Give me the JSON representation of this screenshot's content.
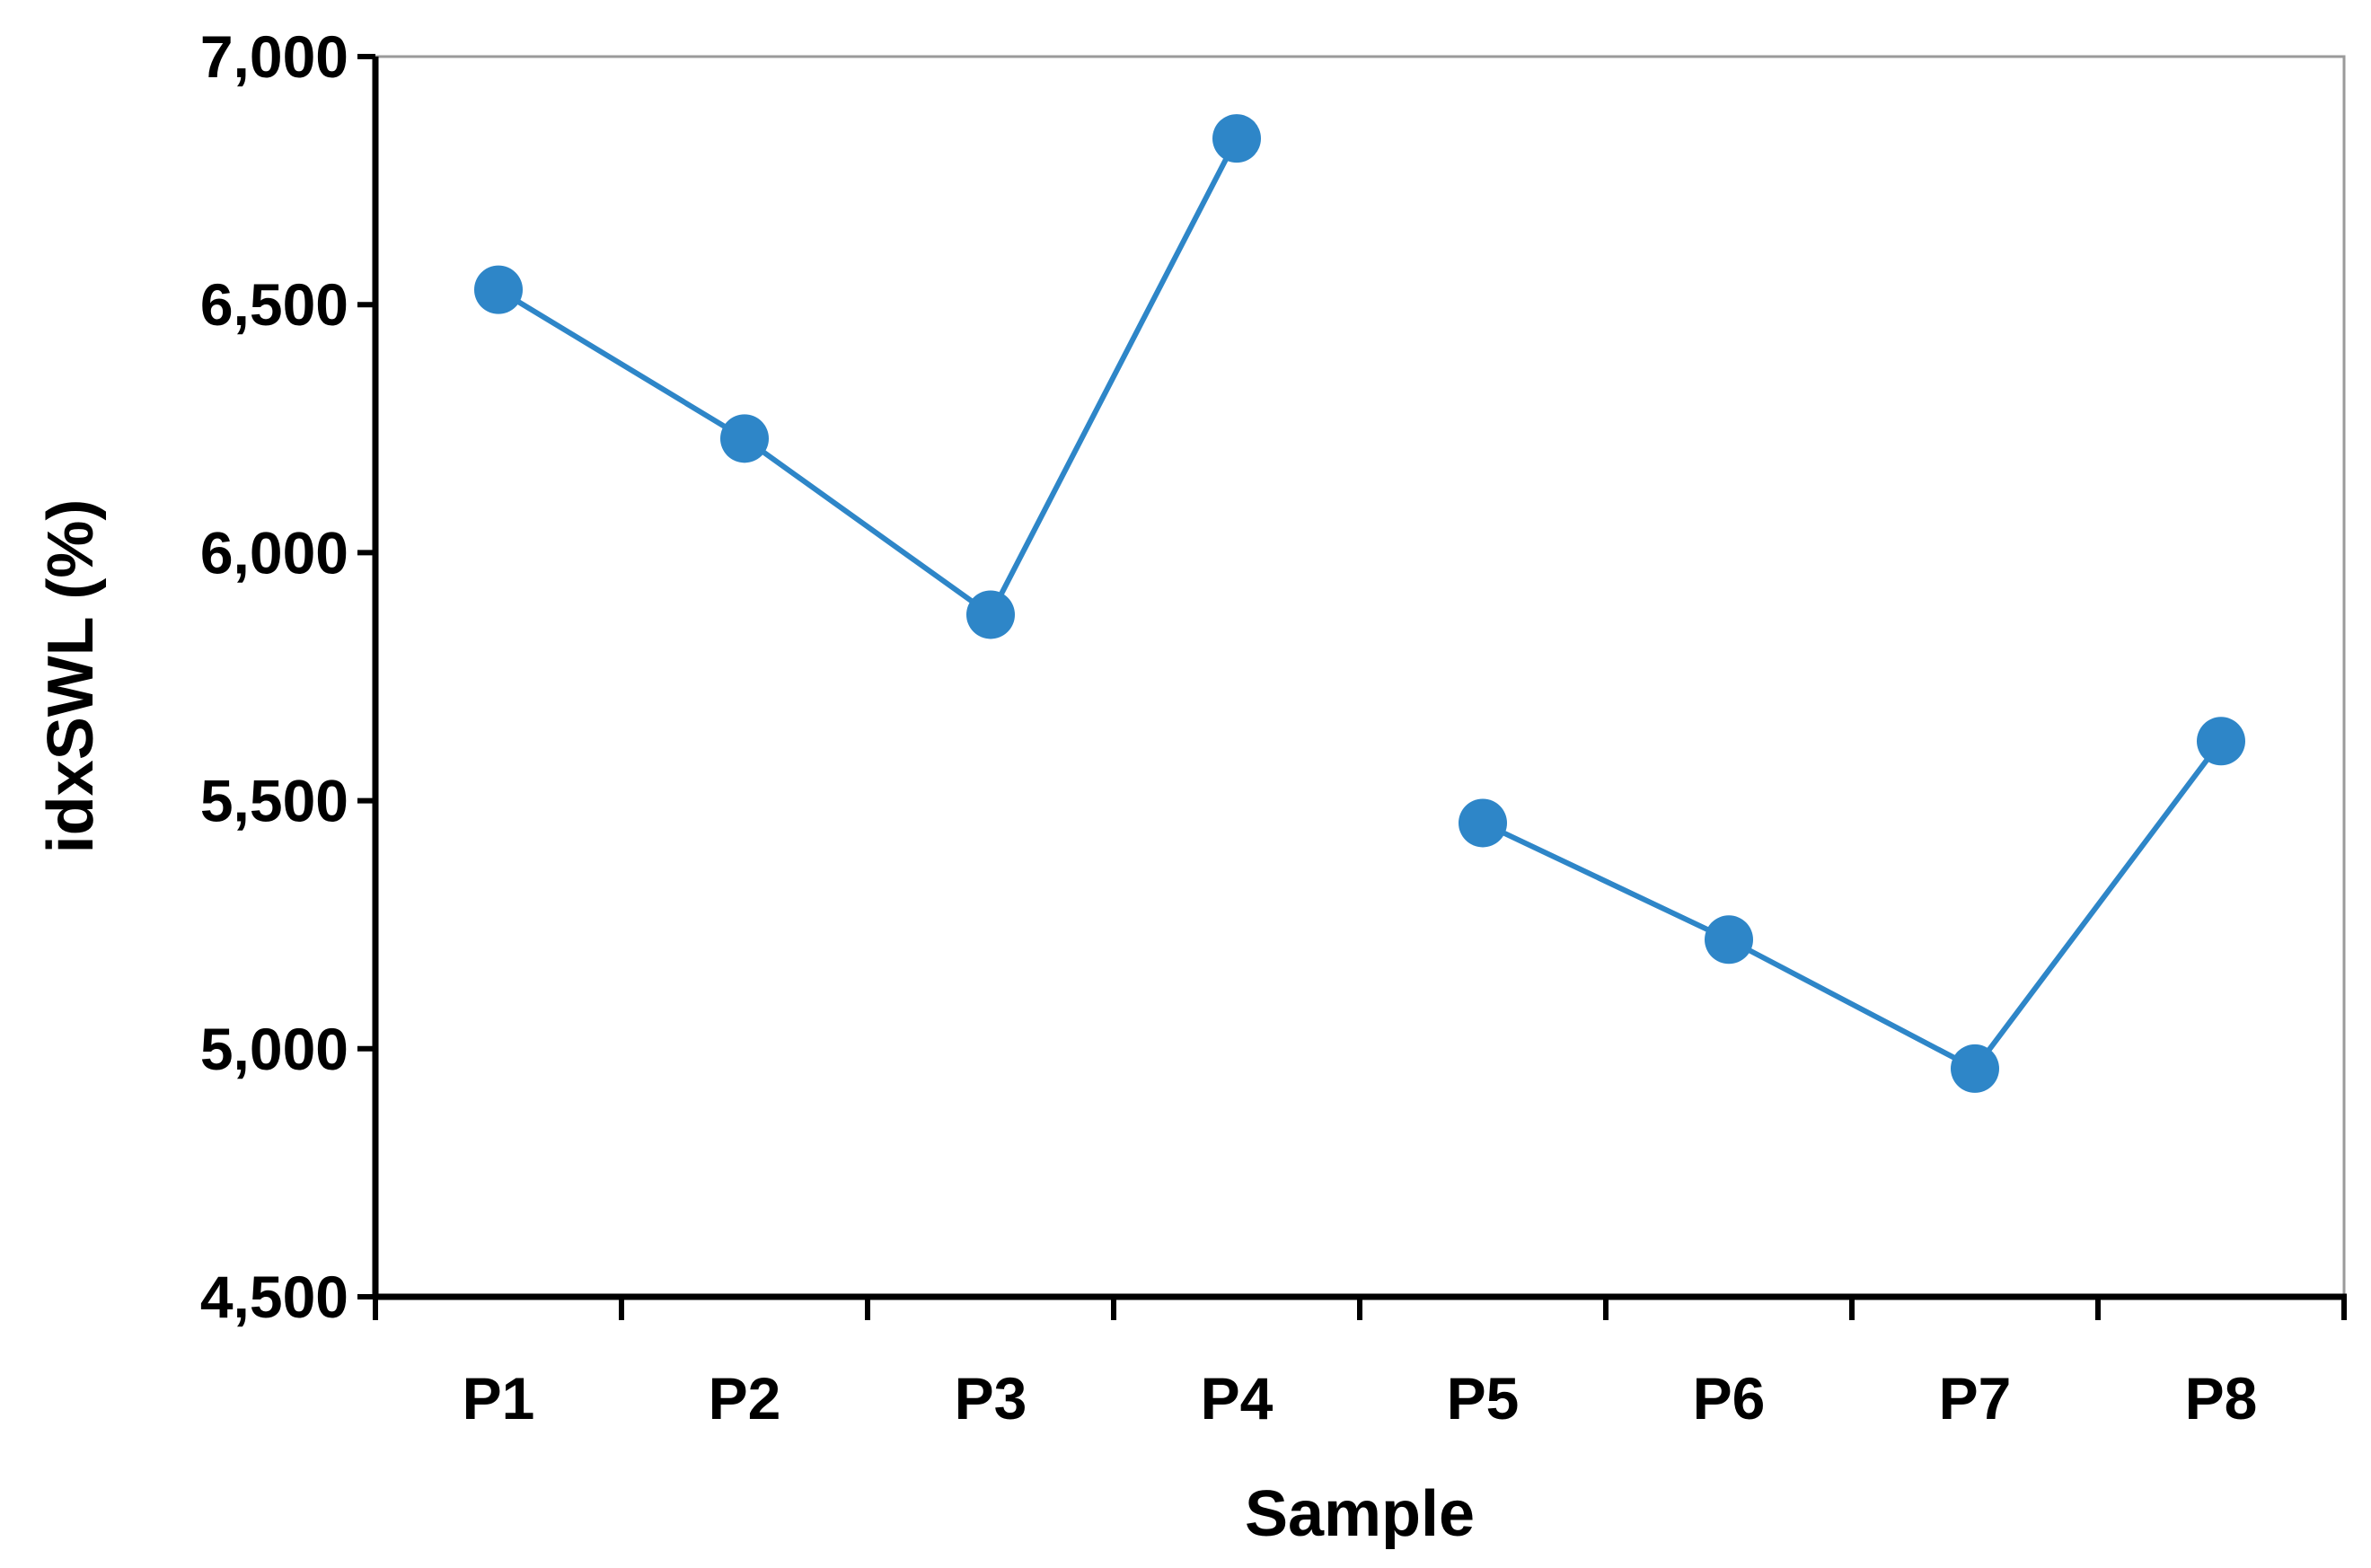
{
  "chart_data": {
    "type": "line",
    "title": "",
    "xlabel": "Sample",
    "ylabel": "idxSWL (%)",
    "categories": [
      "P1",
      "P2",
      "P3",
      "P4",
      "P5",
      "P6",
      "P7",
      "P8"
    ],
    "series": [
      {
        "name": "idxSWL",
        "values": [
          6530,
          6230,
          5875,
          6835,
          5455,
          5220,
          4960,
          5620
        ],
        "segments": [
          [
            0,
            3
          ],
          [
            4,
            7
          ]
        ],
        "color": "#2E86C8"
      }
    ],
    "ylim": [
      4500,
      7000
    ],
    "yticks": [
      4500,
      5000,
      5500,
      6000,
      6500,
      7000
    ],
    "ytick_labels": [
      "4,500",
      "5,000",
      "5,500",
      "6,000",
      "6,500",
      "7,000"
    ],
    "grid": false,
    "legend": "none"
  }
}
